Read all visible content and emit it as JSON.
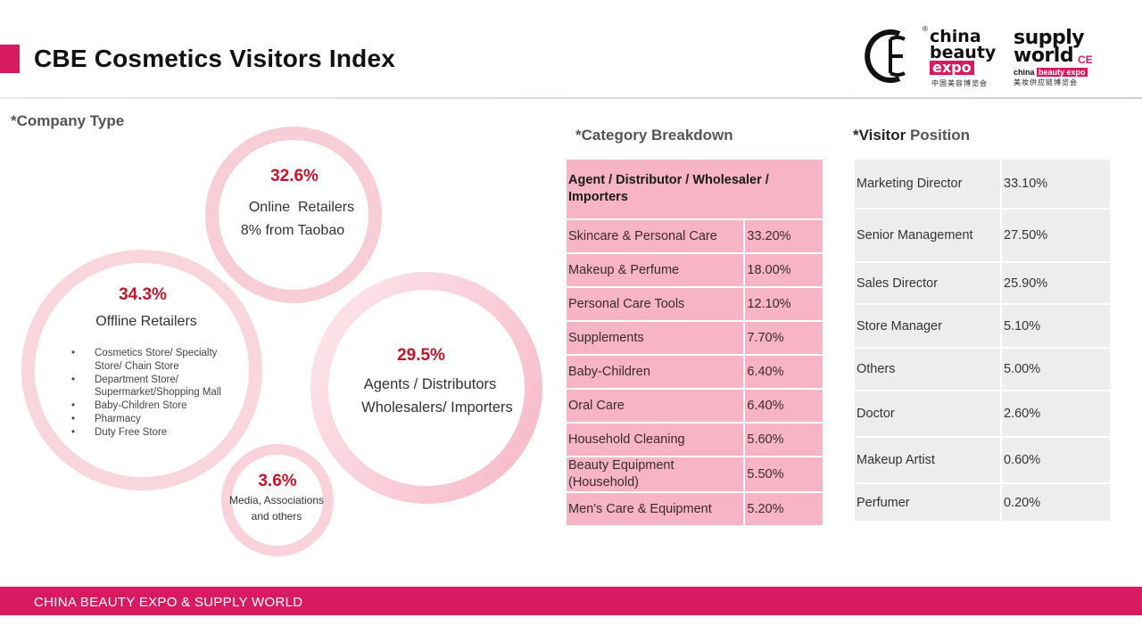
{
  "title": "CBE Cosmetics Visitors Index",
  "logos": {
    "cbe": {
      "line1": "china",
      "line2": "beauty",
      "line3": "expo",
      "sub_cn": "中国美容博览会",
      "reg_mark": "®"
    },
    "supply_world": {
      "line1": "supply",
      "line2": "world",
      "sub_prefix": "china",
      "sub_highlight": "beauty expo",
      "sub_cn": "美妆供应链博览会",
      "mark": "CE"
    }
  },
  "company_type": {
    "heading": "*Company Type",
    "online": {
      "pct": "32.6%",
      "label": "Online  Retailers",
      "note": "8% from Taobao"
    },
    "offline": {
      "pct": "34.3%",
      "label": "Offline Retailers",
      "items": [
        "Cosmetics Store/ Specialty Store/ Chain Store",
        "Department Store/ Supermarket/Shopping Mall",
        "Baby-Children Store",
        "Pharmacy",
        "Duty Free Store"
      ]
    },
    "agents": {
      "pct": "29.5%",
      "line1": "Agents / Distributors",
      "line2": "Wholesalers/ Importers"
    },
    "media": {
      "pct": "3.6%",
      "line1": "Media, Associations",
      "line2": "and others"
    }
  },
  "category_breakdown": {
    "heading": "*Category Breakdown",
    "header": "Agent / Distributor / Wholesaler / Importers",
    "rows": [
      {
        "label": "Skincare & Personal Care",
        "value": "33.20%"
      },
      {
        "label": "Makeup & Perfume",
        "value": "18.00%"
      },
      {
        "label": "Personal Care Tools",
        "value": "12.10%"
      },
      {
        "label": "Supplements",
        "value": "7.70%"
      },
      {
        "label": "Baby-Children",
        "value": "6.40%"
      },
      {
        "label": "Oral Care",
        "value": "6.40%"
      },
      {
        "label": "Household Cleaning",
        "value": "5.60%"
      },
      {
        "label": "Beauty Equipment (Household)",
        "value": "5.50%"
      },
      {
        "label": "Men's Care & Equipment",
        "value": "5.20%"
      }
    ]
  },
  "visitor_position": {
    "heading_bold": "*Visitor",
    "heading_rest": " Position",
    "rows": [
      {
        "label": "Marketing Director",
        "value": "33.10%"
      },
      {
        "label": "Senior Management",
        "value": "27.50%"
      },
      {
        "label": "Sales Director",
        "value": "25.90%"
      },
      {
        "label": "Store Manager",
        "value": "5.10%"
      },
      {
        "label": "Others",
        "value": "5.00%"
      },
      {
        "label": "Doctor",
        "value": "2.60%"
      },
      {
        "label": "Makeup Artist",
        "value": "0.60%"
      },
      {
        "label": "Perfumer",
        "value": "0.20%"
      }
    ]
  },
  "footer": "CHINA BEAUTY EXPO & SUPPLY  WORLD",
  "colors": {
    "brand_pink": "#d81b60",
    "table_pink": "#f7b4c6",
    "table_gray": "#ededed",
    "pct_red": "#c0162b"
  }
}
